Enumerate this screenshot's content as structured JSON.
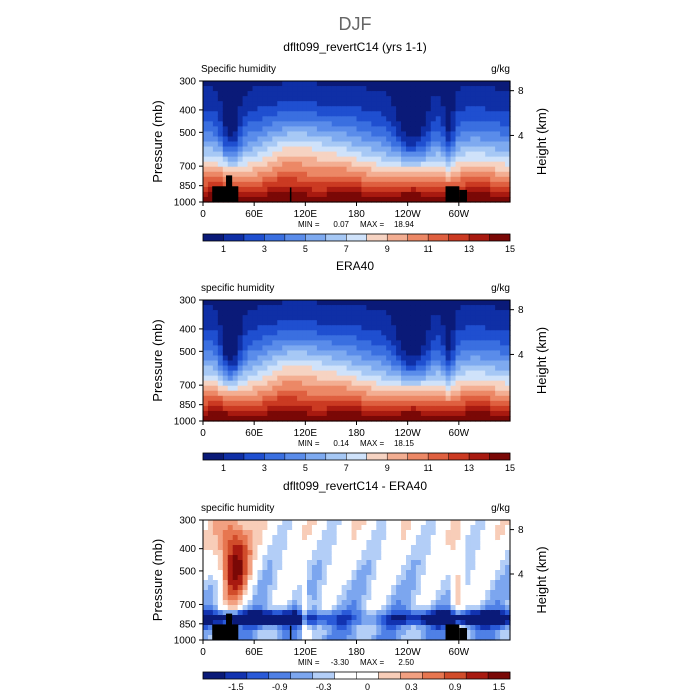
{
  "figure_title": "DJF",
  "chart_data": [
    {
      "type": "heatmap",
      "title": "dflt099_revertC14 (yrs 1-1)",
      "left_label": "Specific humidity",
      "units": "g/kg",
      "ylabel": "Pressure (mb)",
      "ylabel_right": "Height (km)",
      "x_ticks": [
        "0",
        "60E",
        "120E",
        "180",
        "120W",
        "60W"
      ],
      "y_ticks": [
        "300",
        "400",
        "500",
        "700",
        "850",
        "1000"
      ],
      "right_ticks": [
        "8",
        "4"
      ],
      "stats": {
        "min_label": "MIN =",
        "min": "0.07",
        "max_label": "MAX =",
        "max": "18.94"
      },
      "colorbar": {
        "labels": [
          "1",
          "3",
          "5",
          "7",
          "9",
          "11",
          "13",
          "15"
        ],
        "colors": [
          "#0a1a78",
          "#0f2fa6",
          "#1f4fd0",
          "#3a6fe0",
          "#5a8cea",
          "#7eaaf0",
          "#a6c8f5",
          "#cfe2fa",
          "#f6d3c2",
          "#f3ae92",
          "#ec8866",
          "#df6040",
          "#cb3a22",
          "#a81a10",
          "#7a0806"
        ]
      }
    },
    {
      "type": "heatmap",
      "title": "ERA40",
      "left_label": "specific humidity",
      "units": "g/kg",
      "ylabel": "Pressure (mb)",
      "ylabel_right": "Height (km)",
      "x_ticks": [
        "0",
        "60E",
        "120E",
        "180",
        "120W",
        "60W"
      ],
      "y_ticks": [
        "300",
        "400",
        "500",
        "700",
        "850",
        "1000"
      ],
      "right_ticks": [
        "8",
        "4"
      ],
      "stats": {
        "min_label": "MIN =",
        "min": "0.14",
        "max_label": "MAX =",
        "max": "18.15"
      },
      "colorbar": {
        "labels": [
          "1",
          "3",
          "5",
          "7",
          "9",
          "11",
          "13",
          "15"
        ],
        "colors": [
          "#0a1a78",
          "#0f2fa6",
          "#1f4fd0",
          "#3a6fe0",
          "#5a8cea",
          "#7eaaf0",
          "#a6c8f5",
          "#cfe2fa",
          "#f6d3c2",
          "#f3ae92",
          "#ec8866",
          "#df6040",
          "#cb3a22",
          "#a81a10",
          "#7a0806"
        ]
      }
    },
    {
      "type": "heatmap",
      "title": "dflt099_revertC14 - ERA40",
      "left_label": "specific humidity",
      "units": "g/kg",
      "ylabel": "Pressure (mb)",
      "ylabel_right": "Height (km)",
      "x_ticks": [
        "0",
        "60E",
        "120E",
        "180",
        "120W",
        "60W"
      ],
      "y_ticks": [
        "300",
        "400",
        "500",
        "700",
        "850",
        "1000"
      ],
      "right_ticks": [
        "8",
        "4"
      ],
      "stats": {
        "min_label": "MIN =",
        "min": "-3.30",
        "max_label": "MAX =",
        "max": "2.50"
      },
      "colorbar": {
        "labels": [
          "-1.5",
          "-0.9",
          "-0.3",
          "0",
          "0.3",
          "0.9",
          "1.5"
        ],
        "colors": [
          "#0a1a78",
          "#1233b0",
          "#2a5ad8",
          "#4f80e6",
          "#7ca6ef",
          "#b3cef7",
          "#ffffff",
          "#ffffff",
          "#f8cdb8",
          "#f2a081",
          "#e77650",
          "#d14c2a",
          "#a81a10",
          "#7a0806"
        ]
      }
    }
  ]
}
